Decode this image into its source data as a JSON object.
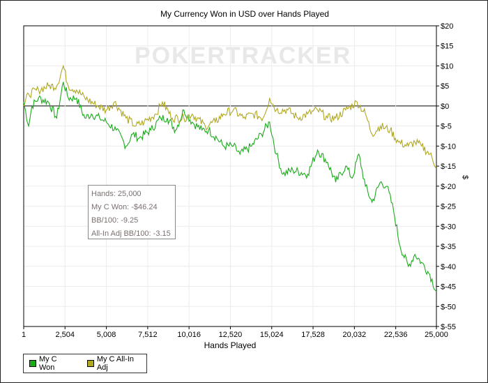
{
  "chart_data": {
    "type": "line",
    "title": "My Currency Won in USD over Hands Played",
    "xlabel": "Hands Played",
    "ylabel": "$",
    "xlim": [
      1,
      25000
    ],
    "ylim": [
      -55,
      20
    ],
    "xticks": [
      1,
      2504,
      5008,
      7512,
      10016,
      12520,
      15024,
      17528,
      20032,
      22536,
      25000
    ],
    "xtick_labels": [
      "1",
      "2,504",
      "5,008",
      "7,512",
      "10,016",
      "12,520",
      "15,024",
      "17,528",
      "20,032",
      "22,536",
      "25,000"
    ],
    "yticks": [
      20,
      15,
      10,
      5,
      0,
      -5,
      -10,
      -15,
      -20,
      -25,
      -30,
      -35,
      -40,
      -45,
      -50,
      -55
    ],
    "ytick_labels": [
      "$20",
      "$15",
      "$10",
      "$5",
      "$0",
      "$-5",
      "$-10",
      "$-15",
      "$-20",
      "$-25",
      "$-30",
      "$-35",
      "$-40",
      "$-45",
      "$-50",
      "$-55"
    ],
    "grid": true,
    "legend_position": "bottom-left",
    "series": [
      {
        "name": "My C Won",
        "color": "#1aaa1a",
        "x": [
          1,
          300,
          500,
          900,
          1500,
          2000,
          2400,
          2700,
          3200,
          3700,
          4100,
          4600,
          5000,
          5600,
          6200,
          6600,
          7000,
          7700,
          8300,
          8700,
          9200,
          9700,
          10200,
          10800,
          11200,
          11700,
          12100,
          12700,
          13100,
          13800,
          14400,
          14900,
          15300,
          15700,
          16300,
          17200,
          17800,
          18400,
          18900,
          19500,
          19900,
          20300,
          20700,
          21100,
          21600,
          22000,
          22400,
          22800,
          23300,
          23700,
          24100,
          24600,
          25000
        ],
        "y": [
          1,
          -5,
          0,
          2,
          1,
          -3,
          6,
          2,
          2,
          -3,
          -2,
          -3,
          -4,
          -6,
          -10,
          -7,
          -8,
          -6,
          -3,
          -3,
          -6,
          -1,
          -4,
          -6,
          -6,
          -8,
          -10,
          -10,
          -12,
          -10,
          -7,
          -4,
          -12,
          -17,
          -16,
          -17,
          -11,
          -14,
          -19,
          -15,
          -18,
          -12,
          -20,
          -24,
          -19,
          -20,
          -26,
          -35,
          -40,
          -37,
          -39,
          -42,
          -46.24
        ]
      },
      {
        "name": "My C All-In Adj",
        "color": "#b0a820",
        "x": [
          1,
          300,
          900,
          1500,
          2000,
          2400,
          2700,
          3200,
          3700,
          4500,
          5000,
          5500,
          6200,
          6800,
          7300,
          8000,
          8400,
          9000,
          9700,
          10200,
          11000,
          11600,
          12100,
          12700,
          13300,
          13900,
          14500,
          14900,
          15300,
          16000,
          16600,
          17200,
          17800,
          18400,
          18900,
          19500,
          20200,
          20700,
          21100,
          21600,
          22200,
          22700,
          23300,
          23700,
          24100,
          24600,
          25000
        ],
        "y": [
          0,
          3,
          4,
          5,
          5,
          10,
          5,
          4,
          2,
          0,
          -1,
          1,
          -3,
          -5,
          -4,
          -2,
          1,
          -3,
          -3,
          -2,
          -5,
          -4,
          -2,
          -1,
          -3,
          -2,
          -3,
          2,
          -1,
          -1,
          -3,
          -2,
          -1,
          -3,
          -3,
          -1,
          1,
          -2,
          -7,
          -5,
          -6,
          -9,
          -10,
          -9,
          -10,
          -12,
          -15
        ]
      }
    ]
  },
  "watermark": "POKERTRACKER",
  "tooltip": {
    "hands": "Hands: 25,000",
    "won": "My C Won: -$46.24",
    "bb100": "BB/100: -9.25",
    "allin": "All-In Adj BB/100: -3.15"
  }
}
